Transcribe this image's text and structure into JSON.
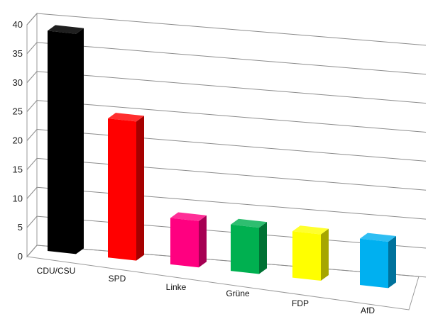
{
  "chart_data": {
    "type": "bar",
    "title": "",
    "xlabel": "",
    "ylabel": "",
    "ylim": [
      0,
      40
    ],
    "yticks": [
      0,
      5,
      10,
      15,
      20,
      25,
      30,
      35,
      40
    ],
    "ytick_labels": [
      "0",
      "5",
      "10",
      "15",
      "20",
      "25",
      "30",
      "35",
      "40"
    ],
    "grid": true,
    "categories": [
      "CDU/CSU",
      "SPD",
      "Linke",
      "Grüne",
      "FDP",
      "AfD"
    ],
    "values": [
      38,
      24,
      8,
      8,
      8,
      8
    ],
    "colors": [
      "#000000",
      "#ff0000",
      "#ff0080",
      "#00b050",
      "#ffff00",
      "#00b0f0"
    ]
  }
}
